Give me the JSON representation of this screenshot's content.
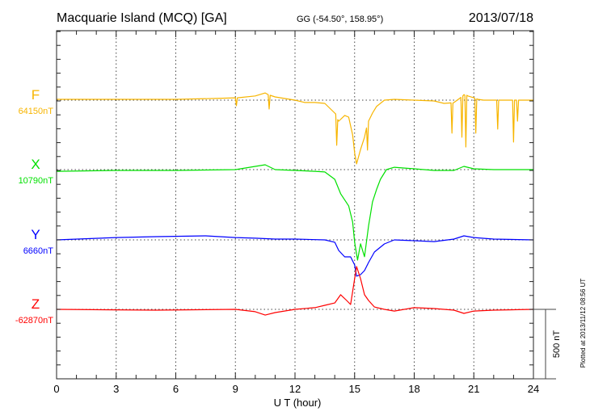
{
  "header": {
    "station": "Macquarie Island (MCQ)  [GA]",
    "coords": "GG (-54.50°, 158.95°)",
    "date": "2013/07/18"
  },
  "footer_note": "Plotted at 2013/11/12 08:56 UT",
  "chart_data": {
    "type": "line",
    "title": "Macquarie Island (MCQ)  [GA]",
    "xlabel": "U T (hour)",
    "xlim": [
      0,
      24
    ],
    "xticks": [
      "0",
      "3",
      "6",
      "9",
      "12",
      "15",
      "18",
      "21",
      "24"
    ],
    "grid": "vertical dotted every 3 hours; dotted baseline per component",
    "scale_bar": {
      "label": "500 nT",
      "value": 500
    },
    "series": [
      {
        "name": "F",
        "baseline_label": "64150nT",
        "color": "#f7b500",
        "x": [
          0,
          3,
          6,
          8,
          9,
          9.05,
          9.1,
          10,
          10.5,
          10.65,
          10.7,
          10.75,
          11,
          12,
          12.5,
          13,
          13.5,
          14,
          14.05,
          14.1,
          14.15,
          14.2,
          14.5,
          14.7,
          14.9,
          15,
          15.1,
          15.3,
          15.5,
          15.6,
          15.65,
          15.7,
          15.9,
          16.1,
          16.5,
          17,
          18,
          19,
          19.5,
          19.85,
          19.9,
          19.95,
          20,
          20.35,
          20.4,
          20.45,
          20.5,
          20.55,
          20.6,
          20.65,
          20.7,
          21,
          21.05,
          21.1,
          21.15,
          21.2,
          21.5,
          22.15,
          22.2,
          22.25,
          22.95,
          23,
          23.05,
          23.15,
          23.2,
          23.25,
          24
        ],
        "y": [
          6,
          6,
          6,
          12,
          17,
          -40,
          17,
          30,
          52,
          40,
          -64,
          35,
          23,
          0,
          -17,
          -17,
          -23,
          -93,
          -100,
          -325,
          -140,
          -151,
          -110,
          -122,
          -250,
          -380,
          -459,
          -355,
          -267,
          -200,
          -360,
          -151,
          -93,
          -46,
          0,
          6,
          0,
          -6,
          -23,
          -20,
          -238,
          -20,
          -17,
          20,
          -267,
          30,
          40,
          35,
          -337,
          35,
          30,
          17,
          15,
          -238,
          10,
          6,
          0,
          0,
          -209,
          0,
          0,
          -302,
          0,
          0,
          -151,
          0,
          0
        ]
      },
      {
        "name": "X",
        "baseline_label": "10790nT",
        "color": "#00e000",
        "x": [
          0,
          3,
          6,
          9,
          10.5,
          11,
          12,
          13,
          13.5,
          14,
          14.3,
          14.7,
          14.9,
          15,
          15.15,
          15.3,
          15.5,
          15.7,
          15.9,
          16.1,
          16.3,
          16.6,
          17,
          18,
          19,
          20,
          20.5,
          21,
          22,
          24
        ],
        "y": [
          -12,
          -6,
          -6,
          0,
          35,
          0,
          -6,
          -12,
          -17,
          -70,
          -174,
          -261,
          -377,
          -523,
          -651,
          -534,
          -627,
          -406,
          -232,
          -145,
          -70,
          0,
          17,
          6,
          -6,
          -6,
          23,
          6,
          0,
          0
        ]
      },
      {
        "name": "Y",
        "baseline_label": "6660nT",
        "color": "#0000ff",
        "x": [
          0,
          3,
          5,
          7.5,
          9,
          10,
          11,
          12,
          13.5,
          14,
          14.2,
          14.5,
          14.8,
          15,
          15.1,
          15.3,
          15.5,
          15.7,
          16,
          16.5,
          17,
          18,
          19,
          20,
          20.5,
          21,
          22,
          24
        ],
        "y": [
          0,
          17,
          23,
          29,
          17,
          12,
          6,
          6,
          0,
          -17,
          -76,
          -122,
          -122,
          -180,
          -261,
          -250,
          -221,
          -163,
          -87,
          -29,
          0,
          -6,
          -12,
          6,
          29,
          17,
          6,
          0
        ]
      },
      {
        "name": "Z",
        "baseline_label": "-62870nT",
        "color": "#ff0000",
        "x": [
          0,
          5,
          9,
          10,
          10.5,
          11,
          12,
          13,
          13.5,
          14,
          14.3,
          14.6,
          14.8,
          15,
          15.1,
          15.3,
          15.5,
          15.7,
          16,
          16.5,
          17,
          18,
          19,
          20,
          20.5,
          21,
          22,
          24
        ],
        "y": [
          0,
          -6,
          0,
          -17,
          -41,
          -23,
          0,
          12,
          29,
          46,
          105,
          64,
          35,
          221,
          308,
          221,
          105,
          64,
          17,
          0,
          -12,
          12,
          6,
          -6,
          -29,
          -12,
          -6,
          0
        ]
      }
    ]
  }
}
